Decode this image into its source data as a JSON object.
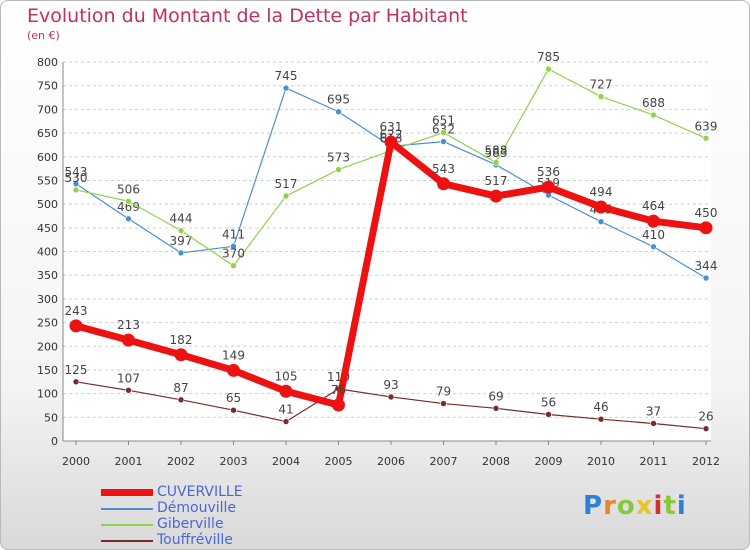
{
  "header": {
    "title": "Evolution du Montant de la Dette par Habitant",
    "subtitle": "(en €)"
  },
  "logo": {
    "text": "Proxiti",
    "letters": [
      "P",
      "r",
      "o",
      "x",
      "i",
      "t",
      "i"
    ],
    "colors": [
      "#2f7fd6",
      "#e8842a",
      "#8cc63f",
      "#e8c52a",
      "#d62f2f",
      "#8cc63f",
      "#2f7fd6"
    ]
  },
  "chart_data": {
    "type": "line",
    "title": "Evolution du Montant de la Dette par Habitant",
    "subtitle": "(en €)",
    "x": [
      "2000",
      "2001",
      "2002",
      "2003",
      "2004",
      "2005",
      "2006",
      "2007",
      "2008",
      "2009",
      "2010",
      "2011",
      "2012"
    ],
    "ylim": [
      0,
      800
    ],
    "yticks": [
      0,
      50,
      100,
      150,
      200,
      250,
      300,
      350,
      400,
      450,
      500,
      550,
      600,
      650,
      700,
      750,
      800
    ],
    "grid": "horizontal",
    "legend_position": "bottom-left",
    "series": [
      {
        "name": "Démouville",
        "color": "#4a8fd4",
        "values": [
          543,
          469,
          397,
          411,
          745,
          695,
          622,
          632,
          583,
          519,
          463,
          410,
          344
        ]
      },
      {
        "name": "Giberville",
        "color": "#8ed44a",
        "values": [
          530,
          506,
          444,
          370,
          517,
          573,
          613,
          651,
          588,
          785,
          727,
          688,
          639
        ]
      },
      {
        "name": "Touffréville",
        "color": "#7a2a2a",
        "values": [
          125,
          107,
          87,
          65,
          41,
          110,
          93,
          79,
          69,
          56,
          46,
          37,
          26
        ]
      },
      {
        "name": "CUVERVILLE",
        "color": "#ee1111",
        "values": [
          243,
          213,
          182,
          149,
          105,
          76,
          631,
          543,
          517,
          536,
          494,
          464,
          450
        ]
      }
    ],
    "data_labels": {
      "Démouville": [
        "543",
        "469",
        "397",
        "411",
        "745",
        "695",
        "622",
        "632",
        "583",
        "519",
        "463",
        "410",
        "344"
      ],
      "Giberville": [
        "530",
        "506",
        "444",
        "370",
        "517",
        "573",
        "613",
        "651",
        "588",
        "785",
        "727",
        "688",
        "639"
      ],
      "Touffréville": [
        "125",
        "107",
        "87",
        "65",
        "41",
        "110",
        "93",
        "79",
        "69",
        "56",
        "46",
        "37",
        "26"
      ],
      "CUVERVILLE": [
        "243",
        "213",
        "182",
        "149",
        "105",
        "76",
        "631",
        "543",
        "517",
        "536",
        "494",
        "464",
        "450"
      ]
    }
  },
  "legend": {
    "items": [
      {
        "label": "CUVERVILLE",
        "color": "#ee1111"
      },
      {
        "label": "Démouville",
        "color": "#4a8fd4"
      },
      {
        "label": "Giberville",
        "color": "#8ed44a"
      },
      {
        "label": "Touffréville",
        "color": "#7a2a2a"
      }
    ]
  }
}
